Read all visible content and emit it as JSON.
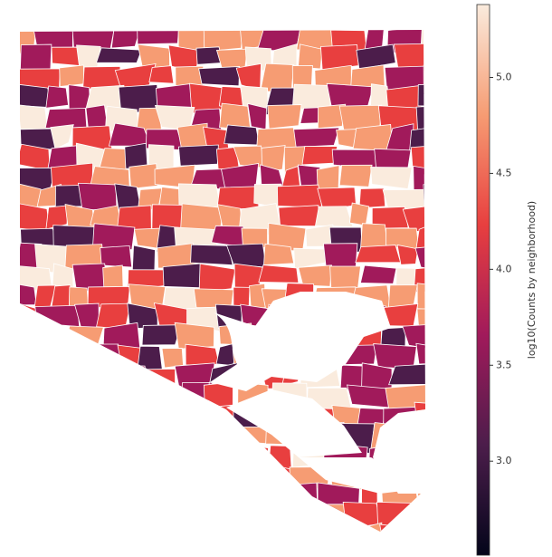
{
  "chart_data": {
    "type": "choropleth",
    "colorbar": {
      "label": "log10(Counts by neighborhood)",
      "clim": [
        2.51,
        5.38
      ],
      "ticks": [
        {
          "value": 3,
          "label": "3.0"
        },
        3.5,
        {
          "value": 4,
          "label": "4.0"
        },
        4.5,
        {
          "value": 5,
          "label": "5.0"
        }
      ],
      "colormap": [
        "#03051a",
        "#4c1d4b",
        "#a11a5b",
        "#e83f3f",
        "#f69c73",
        "#faebdd"
      ]
    }
  }
}
